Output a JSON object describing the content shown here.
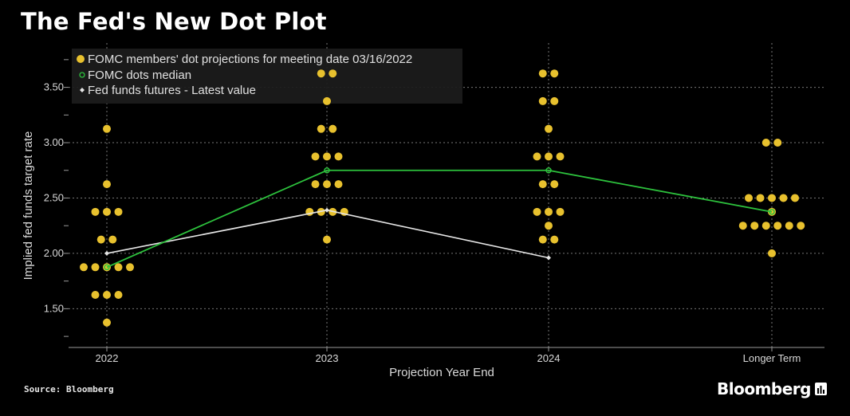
{
  "title": "The Fed's New Dot Plot",
  "source": "Source: Bloomberg",
  "brand": "Bloomberg",
  "colors": {
    "background": "#000000",
    "dot": "#e8c12e",
    "median": "#2dc23d",
    "futures": "#e6e6e6",
    "grid": "#777777",
    "axis": "#9a9a9a"
  },
  "chart_data": {
    "type": "scatter",
    "title": "The Fed's New Dot Plot",
    "xlabel": "Projection Year End",
    "ylabel": "Implied fed funds target rate",
    "categories": [
      "2022",
      "2023",
      "2024",
      "Longer Term"
    ],
    "ylim": [
      1.15,
      3.9
    ],
    "yticks": [
      "1.50",
      "2.00",
      "2.50",
      "3.00",
      "3.50"
    ],
    "ytick_values": [
      1.5,
      2.0,
      2.5,
      3.0,
      3.5
    ],
    "legend": [
      "FOMC members' dot projections for meeting date 03/16/2022",
      "FOMC dots median",
      "Fed funds futures - Latest value"
    ],
    "legend_position": "top-left",
    "dots": [
      {
        "category": "2022",
        "rates": [
          {
            "rate": 3.125,
            "count": 1
          },
          {
            "rate": 2.625,
            "count": 1
          },
          {
            "rate": 2.375,
            "count": 3
          },
          {
            "rate": 2.125,
            "count": 2
          },
          {
            "rate": 1.875,
            "count": 5
          },
          {
            "rate": 1.625,
            "count": 3
          },
          {
            "rate": 1.375,
            "count": 1
          }
        ]
      },
      {
        "category": "2023",
        "rates": [
          {
            "rate": 3.625,
            "count": 2
          },
          {
            "rate": 3.375,
            "count": 1
          },
          {
            "rate": 3.125,
            "count": 2
          },
          {
            "rate": 2.875,
            "count": 3
          },
          {
            "rate": 2.625,
            "count": 3
          },
          {
            "rate": 2.375,
            "count": 4
          },
          {
            "rate": 2.125,
            "count": 1
          }
        ]
      },
      {
        "category": "2024",
        "rates": [
          {
            "rate": 3.625,
            "count": 2
          },
          {
            "rate": 3.375,
            "count": 2
          },
          {
            "rate": 3.125,
            "count": 1
          },
          {
            "rate": 2.875,
            "count": 3
          },
          {
            "rate": 2.625,
            "count": 2
          },
          {
            "rate": 2.375,
            "count": 3
          },
          {
            "rate": 2.25,
            "count": 1
          },
          {
            "rate": 2.125,
            "count": 2
          }
        ]
      },
      {
        "category": "Longer Term",
        "rates": [
          {
            "rate": 3.0,
            "count": 2
          },
          {
            "rate": 2.5,
            "count": 5
          },
          {
            "rate": 2.375,
            "count": 1
          },
          {
            "rate": 2.25,
            "count": 6
          },
          {
            "rate": 2.0,
            "count": 1
          }
        ]
      }
    ],
    "series": [
      {
        "name": "FOMC dots median",
        "categories": [
          "2022",
          "2023",
          "2024",
          "Longer Term"
        ],
        "values": [
          1.875,
          2.75,
          2.75,
          2.375
        ]
      },
      {
        "name": "Fed funds futures - Latest value",
        "categories": [
          "2022",
          "2023",
          "2024"
        ],
        "values": [
          2.0,
          2.39,
          1.96
        ]
      }
    ]
  }
}
